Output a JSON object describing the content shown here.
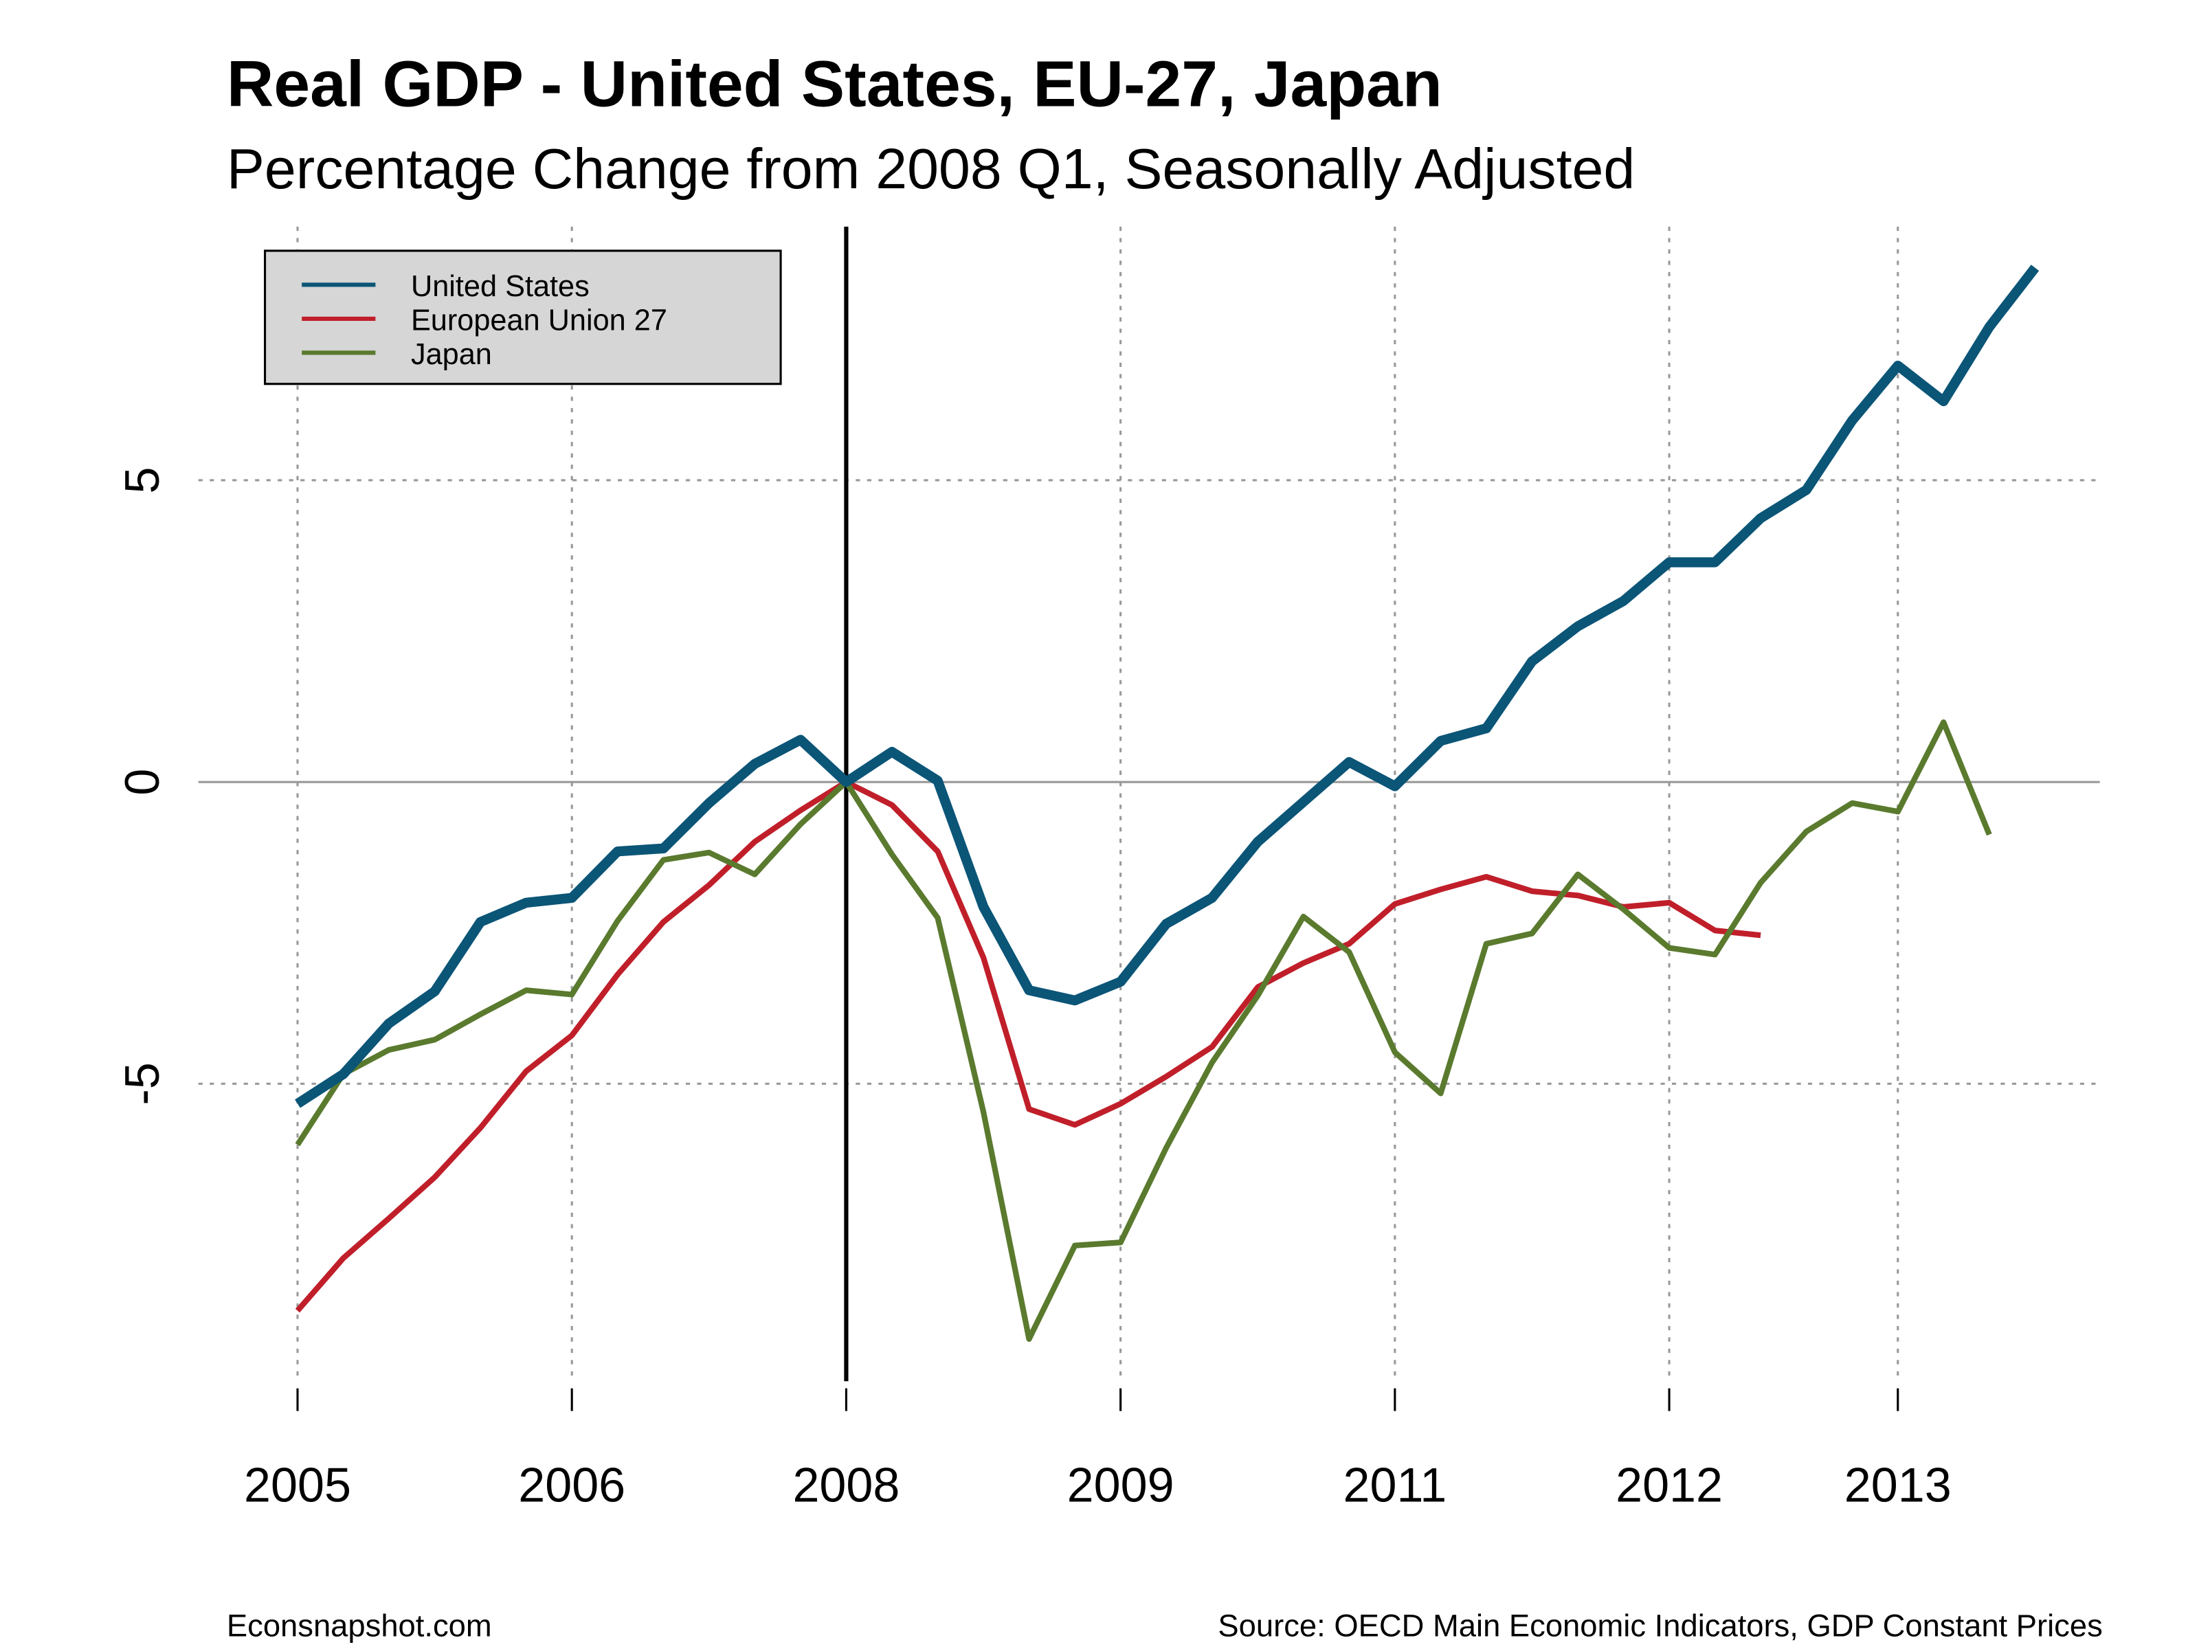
{
  "chart_data": {
    "type": "line",
    "title": "Real GDP - United States, EU-27, Japan",
    "subtitle": "Percentage Change from 2008 Q1, Seasonally Adjusted",
    "xlabel": "",
    "ylabel": "",
    "x_unit": "quarter index from 2005 Q1",
    "xticks": [
      {
        "index": 0,
        "label": "2005"
      },
      {
        "index": 6,
        "label": "2006"
      },
      {
        "index": 12,
        "label": "2008"
      },
      {
        "index": 18,
        "label": "2009"
      },
      {
        "index": 24,
        "label": "2011"
      },
      {
        "index": 30,
        "label": "2012"
      },
      {
        "index": 35,
        "label": "2013"
      }
    ],
    "yticks": [
      {
        "value": -5,
        "label": "-5"
      },
      {
        "value": 0,
        "label": "0"
      },
      {
        "value": 5,
        "label": "5"
      }
    ],
    "ylim": [
      -10,
      10
    ],
    "xlim": [
      -1,
      39
    ],
    "grid": true,
    "reference_index": 12,
    "legend_position": "top-left",
    "series": [
      {
        "name": "United States",
        "color": "#0b5577",
        "width": "thick",
        "values": [
          -5.33,
          -4.84,
          -4.0,
          -3.47,
          -2.32,
          -2.0,
          -1.92,
          -1.15,
          -1.1,
          -0.35,
          0.3,
          0.7,
          0,
          0.5,
          0.02,
          -2.07,
          -3.45,
          -3.62,
          -3.31,
          -2.35,
          -1.92,
          -0.99,
          -0.33,
          0.33,
          -0.07,
          0.68,
          0.89,
          2.0,
          2.58,
          3.0,
          3.64,
          3.64,
          4.37,
          4.84,
          5.99,
          6.9,
          6.31,
          7.54,
          8.52
        ]
      },
      {
        "name": "European Union 27",
        "color": "#c01f2a",
        "width": "normal",
        "values": [
          -8.76,
          -7.89,
          -7.23,
          -6.55,
          -5.73,
          -4.79,
          -4.2,
          -3.19,
          -2.32,
          -1.71,
          -0.99,
          -0.47,
          0,
          -0.38,
          -1.15,
          -2.91,
          -5.42,
          -5.68,
          -5.33,
          -4.88,
          -4.39,
          -3.4,
          -3.0,
          -2.68,
          -2.02,
          -1.78,
          -1.57,
          -1.81,
          -1.88,
          -2.07,
          -2.0,
          -2.46,
          -2.54
        ]
      },
      {
        "name": "Japan",
        "color": "#5a7a2e",
        "width": "normal",
        "values": [
          -6.01,
          -4.84,
          -4.44,
          -4.27,
          -3.85,
          -3.45,
          -3.52,
          -2.3,
          -1.29,
          -1.17,
          -1.53,
          -0.7,
          0,
          -1.2,
          -2.25,
          -5.47,
          -9.23,
          -7.68,
          -7.63,
          -6.06,
          -4.65,
          -3.54,
          -2.23,
          -2.82,
          -4.48,
          -5.16,
          -2.68,
          -2.51,
          -1.53,
          -2.11,
          -2.75,
          -2.86,
          -1.67,
          -0.82,
          -0.35,
          -0.49,
          0.99,
          -0.87
        ]
      }
    ]
  },
  "footer": {
    "left": "Econsnapshot.com",
    "right": "Source: OECD Main Economic Indicators, GDP Constant Prices"
  }
}
